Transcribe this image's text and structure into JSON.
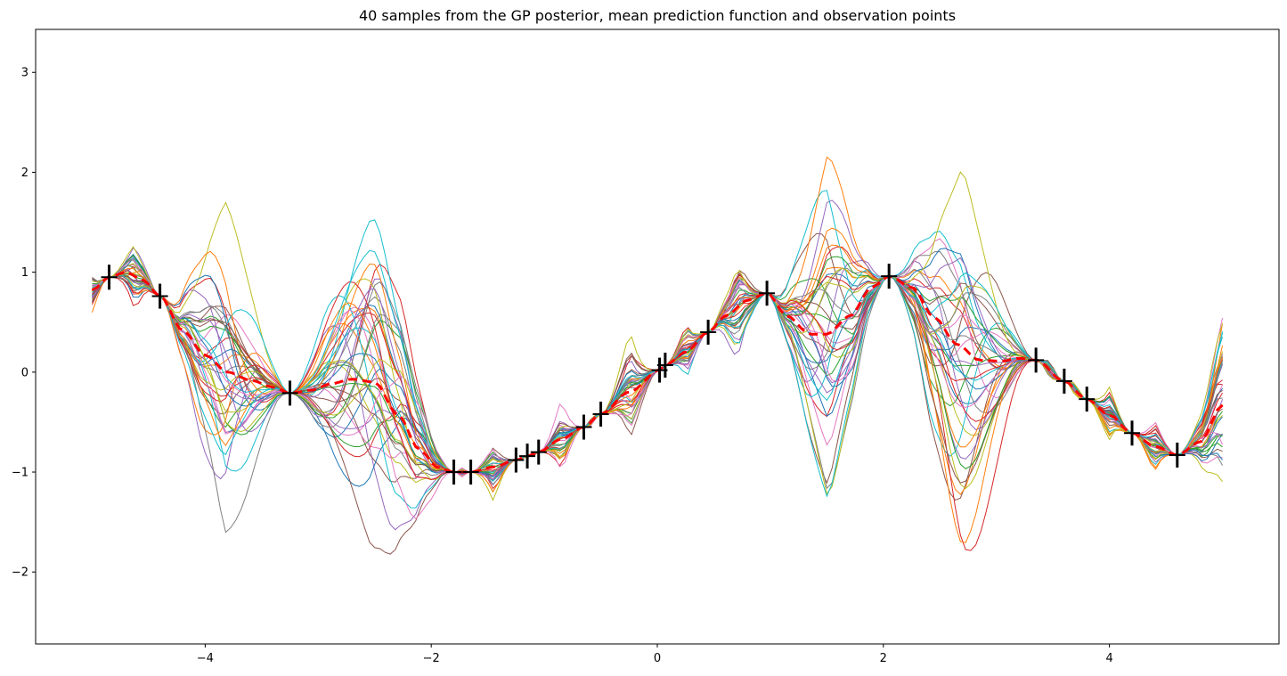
{
  "chart_data": {
    "type": "line",
    "title": "40 samples from the GP posterior, mean prediction function and observation points",
    "xlabel": "",
    "ylabel": "",
    "xlim": [
      -5.5,
      5.5
    ],
    "ylim": [
      -2.72,
      3.43
    ],
    "grid": false,
    "xticks": [
      -4,
      -2,
      0,
      2,
      4
    ],
    "xtick_labels": [
      "−4",
      "−2",
      "0",
      "2",
      "4"
    ],
    "yticks": [
      -2,
      -1,
      0,
      1,
      2,
      3
    ],
    "ytick_labels": [
      "−2",
      "−1",
      "0",
      "1",
      "2",
      "3"
    ],
    "sample_count": 40,
    "sample_colors": [
      "#1f77b4",
      "#ff7f0e",
      "#2ca02c",
      "#d62728",
      "#9467bd",
      "#8c564b",
      "#e377c2",
      "#7f7f7f",
      "#bcbd22",
      "#17becf"
    ],
    "mean_color": "#ff0000",
    "observation_marker": "|",
    "observation_color": "#000000",
    "observations": {
      "x": [
        -4.85,
        -4.4,
        -3.25,
        -1.8,
        -1.65,
        -1.25,
        -1.15,
        -1.05,
        -0.65,
        -0.5,
        0.02,
        0.07,
        0.45,
        0.97,
        2.05,
        3.35,
        3.6,
        3.8,
        4.2,
        4.6
      ],
      "y": [
        0.95,
        0.76,
        -0.21,
        -1.0,
        -1.0,
        -0.88,
        -0.84,
        -0.8,
        -0.55,
        -0.42,
        0.02,
        0.07,
        0.4,
        0.79,
        0.96,
        0.12,
        -0.09,
        -0.27,
        -0.61,
        -0.83
      ]
    },
    "mean_prediction": {
      "x": [
        -5.0,
        -4.85,
        -4.7,
        -4.55,
        -4.4,
        -4.2,
        -4.0,
        -3.8,
        -3.6,
        -3.4,
        -3.25,
        -3.05,
        -2.9,
        -2.7,
        -2.5,
        -2.3,
        -2.1,
        -1.95,
        -1.8,
        -1.65,
        -1.45,
        -1.25,
        -1.15,
        -1.05,
        -0.85,
        -0.65,
        -0.5,
        -0.25,
        0.02,
        0.07,
        0.25,
        0.45,
        0.6,
        0.8,
        0.97,
        1.15,
        1.35,
        1.5,
        1.7,
        1.9,
        2.05,
        2.25,
        2.45,
        2.65,
        2.85,
        3.05,
        3.2,
        3.35,
        3.6,
        3.8,
        4.0,
        4.2,
        4.4,
        4.6,
        4.8,
        5.0
      ],
      "y": [
        0.82,
        0.95,
        1.0,
        0.92,
        0.76,
        0.42,
        0.17,
        0.0,
        -0.08,
        -0.15,
        -0.21,
        -0.18,
        -0.12,
        -0.07,
        -0.1,
        -0.42,
        -0.78,
        -0.95,
        -1.0,
        -1.0,
        -0.95,
        -0.88,
        -0.84,
        -0.8,
        -0.67,
        -0.55,
        -0.42,
        -0.2,
        0.02,
        0.07,
        0.2,
        0.4,
        0.56,
        0.72,
        0.79,
        0.56,
        0.38,
        0.38,
        0.56,
        0.85,
        0.96,
        0.85,
        0.55,
        0.28,
        0.12,
        0.11,
        0.14,
        0.12,
        -0.09,
        -0.27,
        -0.43,
        -0.61,
        -0.74,
        -0.83,
        -0.7,
        -0.33
      ]
    }
  }
}
